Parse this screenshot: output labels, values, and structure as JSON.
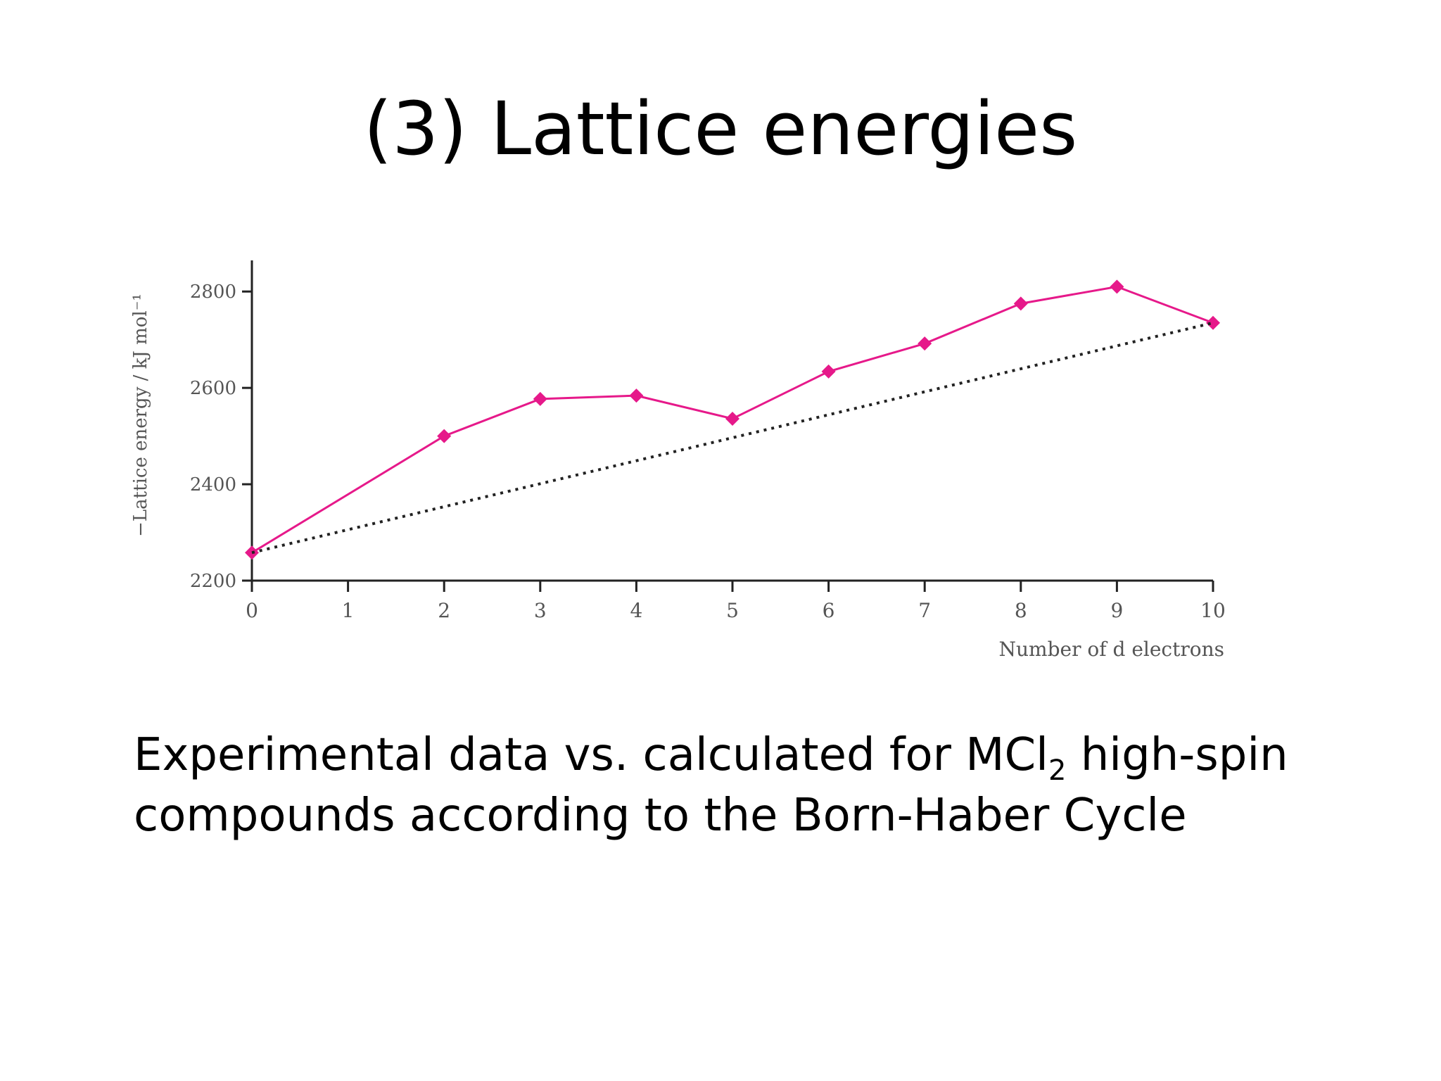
{
  "slide": {
    "title": "(3) Lattice energies",
    "caption": {
      "line1_before": "Experimental data vs. calculated for MCl",
      "line1_sub": "2",
      "line1_after": " high-spin",
      "line2": "compounds according to the Born-Haber Cycle"
    }
  },
  "chart_data": {
    "type": "line",
    "xlabel": "Number of d electrons",
    "ylabel": "−Lattice energy / kJ mol⁻¹",
    "xlim": [
      0,
      10
    ],
    "ylim": [
      2200,
      2850
    ],
    "x_ticks": [
      0,
      1,
      2,
      3,
      4,
      5,
      6,
      7,
      8,
      9,
      10
    ],
    "y_ticks": [
      2200,
      2400,
      2600,
      2800
    ],
    "grid": false,
    "legend": "none",
    "series": [
      {
        "style": "solid-with-diamond-markers",
        "color": "#e6198a",
        "points": [
          {
            "x": 0,
            "y": 2258
          },
          {
            "x": 2,
            "y": 2500
          },
          {
            "x": 3,
            "y": 2577
          },
          {
            "x": 4,
            "y": 2584
          },
          {
            "x": 5,
            "y": 2536
          },
          {
            "x": 6,
            "y": 2634
          },
          {
            "x": 7,
            "y": 2692
          },
          {
            "x": 8,
            "y": 2775
          },
          {
            "x": 9,
            "y": 2810
          },
          {
            "x": 10,
            "y": 2735
          }
        ]
      },
      {
        "style": "dotted",
        "color": "#222222",
        "points": [
          {
            "x": 0,
            "y": 2258
          },
          {
            "x": 10,
            "y": 2735
          }
        ]
      }
    ]
  }
}
